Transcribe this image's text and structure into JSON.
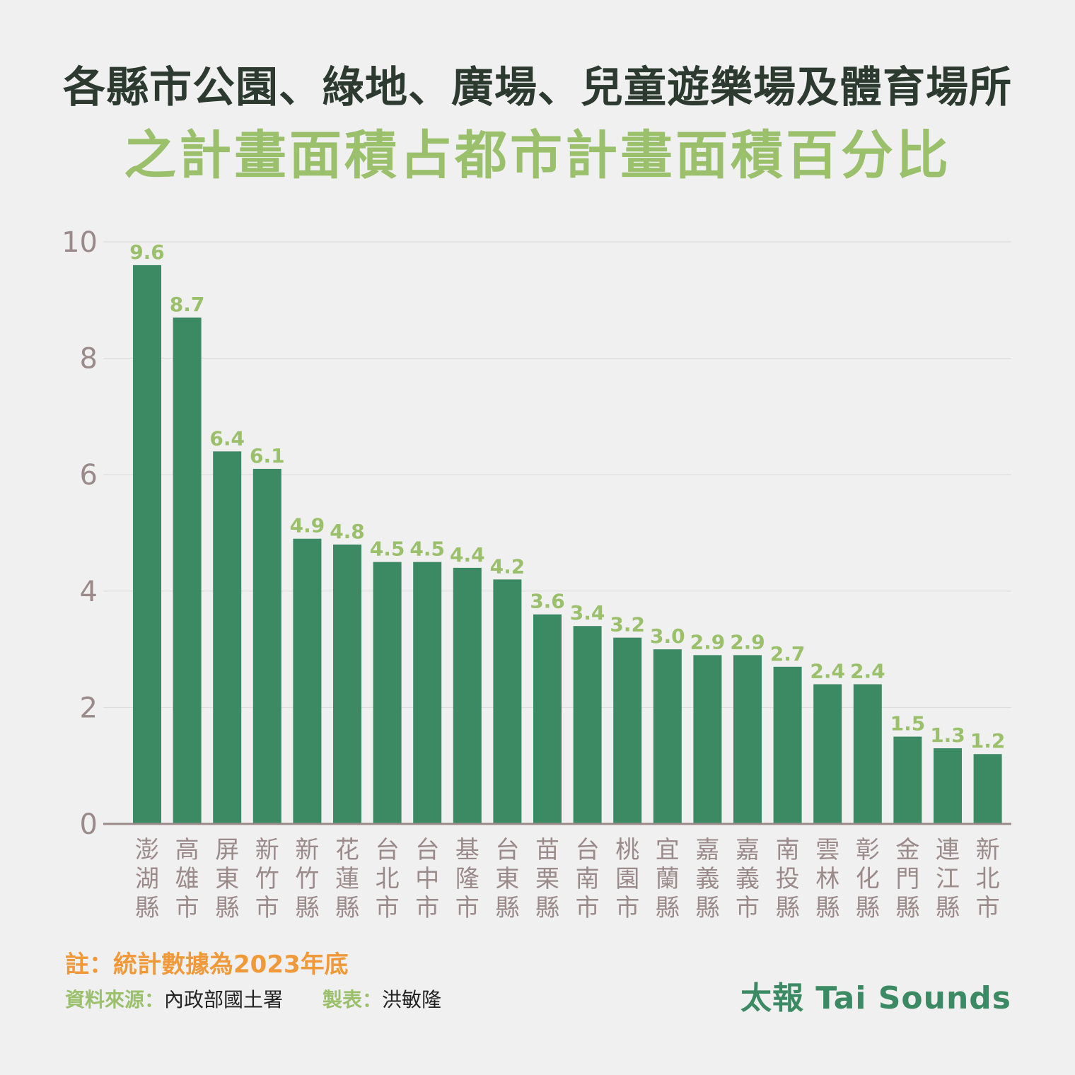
{
  "title_line1": "各縣市公園、綠地、廣場、兒童遊樂場及體育場所",
  "title_line2": "之計畫面積占都市計畫面積百分比",
  "note": "註：統計數據為2023年底",
  "source_label": "資料來源：",
  "source_value": "內政部國土署",
  "maker_label": "製表：",
  "maker_value": "洪敏隆",
  "brand": "太報 Tai Sounds",
  "colors": {
    "bar": "#3c8a63",
    "value_label": "#9bc06c",
    "axis_text": "#9b8a8a",
    "gridline": "#d9d9d9",
    "baseline": "#9b8a8a"
  },
  "chart_data": {
    "type": "bar",
    "categories": [
      "澎湖縣",
      "高雄市",
      "屏東縣",
      "新竹市",
      "新竹縣",
      "花蓮縣",
      "台北市",
      "台中市",
      "基隆市",
      "台東縣",
      "苗栗縣",
      "台南市",
      "桃園市",
      "宜蘭縣",
      "嘉義縣",
      "嘉義市",
      "南投縣",
      "雲林縣",
      "彰化縣",
      "金門縣",
      "連江縣",
      "新北市"
    ],
    "values": [
      9.6,
      8.7,
      6.4,
      6.1,
      4.9,
      4.8,
      4.5,
      4.5,
      4.4,
      4.2,
      3.6,
      3.4,
      3.2,
      3.0,
      2.9,
      2.9,
      2.7,
      2.4,
      2.4,
      1.5,
      1.3,
      1.2
    ],
    "value_labels": [
      "9.6",
      "8.7",
      "6.4",
      "6.1",
      "4.9",
      "4.8",
      "4.5",
      "4.5",
      "4.4",
      "4.2",
      "3.6",
      "3.4",
      "3.2",
      "3.0",
      "2.9",
      "2.9",
      "2.7",
      "2.4",
      "2.4",
      "1.5",
      "1.3",
      "1.2"
    ],
    "yticks": [
      0,
      2,
      4,
      6,
      8,
      10
    ],
    "ylim": [
      0,
      10
    ],
    "grid": true,
    "legend": "none",
    "title": "各縣市公園、綠地、廣場、兒童遊樂場及體育場所之計畫面積占都市計畫面積百分比",
    "xlabel": "",
    "ylabel": ""
  }
}
